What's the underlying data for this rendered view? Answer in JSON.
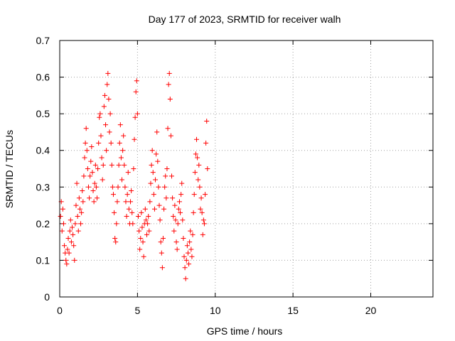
{
  "chart_data": {
    "type": "scatter",
    "title": "Day 177 of 2023, SRMTID for receiver walh",
    "xlabel": "GPS time / hours",
    "ylabel": "SRMTID / TECUs",
    "xlim": [
      0,
      24
    ],
    "ylim": [
      0,
      0.7
    ],
    "xticks": [
      0,
      5,
      10,
      15,
      20
    ],
    "yticks": [
      0,
      0.1,
      0.2,
      0.3,
      0.4,
      0.5,
      0.6,
      0.7
    ],
    "xtick_labels": [
      "0",
      "5",
      "10",
      "15",
      "20"
    ],
    "ytick_labels": [
      "0",
      "0.1",
      "0.2",
      "0.3",
      "0.4",
      "0.5",
      "0.6",
      "0.7"
    ],
    "grid": true,
    "marker": "+",
    "color": "#ff0000",
    "series": [
      {
        "name": "walh",
        "points": [
          [
            0.05,
            0.22
          ],
          [
            0.1,
            0.26
          ],
          [
            0.15,
            0.18
          ],
          [
            0.2,
            0.24
          ],
          [
            0.25,
            0.2
          ],
          [
            0.3,
            0.14
          ],
          [
            0.35,
            0.12
          ],
          [
            0.4,
            0.1
          ],
          [
            0.45,
            0.09
          ],
          [
            0.5,
            0.13
          ],
          [
            0.55,
            0.16
          ],
          [
            0.6,
            0.12
          ],
          [
            0.65,
            0.18
          ],
          [
            0.7,
            0.21
          ],
          [
            0.75,
            0.15
          ],
          [
            0.8,
            0.19
          ],
          [
            0.85,
            0.17
          ],
          [
            0.9,
            0.14
          ],
          [
            0.95,
            0.1
          ],
          [
            1.0,
            0.2
          ],
          [
            1.05,
            0.25
          ],
          [
            1.1,
            0.31
          ],
          [
            1.15,
            0.22
          ],
          [
            1.2,
            0.18
          ],
          [
            1.25,
            0.27
          ],
          [
            1.3,
            0.24
          ],
          [
            1.35,
            0.2
          ],
          [
            1.4,
            0.23
          ],
          [
            1.45,
            0.29
          ],
          [
            1.5,
            0.26
          ],
          [
            1.55,
            0.33
          ],
          [
            1.6,
            0.38
          ],
          [
            1.65,
            0.42
          ],
          [
            1.7,
            0.46
          ],
          [
            1.75,
            0.4
          ],
          [
            1.8,
            0.35
          ],
          [
            1.85,
            0.3
          ],
          [
            1.9,
            0.27
          ],
          [
            1.95,
            0.33
          ],
          [
            2.0,
            0.37
          ],
          [
            2.05,
            0.41
          ],
          [
            2.1,
            0.34
          ],
          [
            2.15,
            0.29
          ],
          [
            2.2,
            0.26
          ],
          [
            2.25,
            0.31
          ],
          [
            2.3,
            0.36
          ],
          [
            2.35,
            0.3
          ],
          [
            2.4,
            0.27
          ],
          [
            2.45,
            0.35
          ],
          [
            2.5,
            0.42
          ],
          [
            2.55,
            0.49
          ],
          [
            2.6,
            0.5
          ],
          [
            2.65,
            0.44
          ],
          [
            2.7,
            0.38
          ],
          [
            2.75,
            0.32
          ],
          [
            2.8,
            0.36
          ],
          [
            2.85,
            0.52
          ],
          [
            2.9,
            0.55
          ],
          [
            2.95,
            0.47
          ],
          [
            3.0,
            0.4
          ],
          [
            3.05,
            0.58
          ],
          [
            3.1,
            0.61
          ],
          [
            3.15,
            0.54
          ],
          [
            3.2,
            0.45
          ],
          [
            3.25,
            0.5
          ],
          [
            3.3,
            0.42
          ],
          [
            3.35,
            0.36
          ],
          [
            3.4,
            0.3
          ],
          [
            3.45,
            0.28
          ],
          [
            3.5,
            0.23
          ],
          [
            3.55,
            0.16
          ],
          [
            3.6,
            0.15
          ],
          [
            3.65,
            0.2
          ],
          [
            3.7,
            0.26
          ],
          [
            3.75,
            0.3
          ],
          [
            3.8,
            0.36
          ],
          [
            3.85,
            0.42
          ],
          [
            3.9,
            0.47
          ],
          [
            3.95,
            0.38
          ],
          [
            4.0,
            0.32
          ],
          [
            4.05,
            0.4
          ],
          [
            4.1,
            0.44
          ],
          [
            4.15,
            0.36
          ],
          [
            4.2,
            0.3
          ],
          [
            4.25,
            0.26
          ],
          [
            4.3,
            0.22
          ],
          [
            4.35,
            0.28
          ],
          [
            4.4,
            0.34
          ],
          [
            4.45,
            0.24
          ],
          [
            4.5,
            0.2
          ],
          [
            4.55,
            0.26
          ],
          [
            4.6,
            0.29
          ],
          [
            4.65,
            0.23
          ],
          [
            4.7,
            0.2
          ],
          [
            4.75,
            0.35
          ],
          [
            4.8,
            0.43
          ],
          [
            4.85,
            0.49
          ],
          [
            4.9,
            0.56
          ],
          [
            4.95,
            0.59
          ],
          [
            5.0,
            0.5
          ],
          [
            5.05,
            0.22
          ],
          [
            5.1,
            0.18
          ],
          [
            5.15,
            0.13
          ],
          [
            5.2,
            0.16
          ],
          [
            5.25,
            0.23
          ],
          [
            5.3,
            0.19
          ],
          [
            5.35,
            0.15
          ],
          [
            5.4,
            0.11
          ],
          [
            5.45,
            0.2
          ],
          [
            5.5,
            0.24
          ],
          [
            5.55,
            0.21
          ],
          [
            5.6,
            0.17
          ],
          [
            5.65,
            0.2
          ],
          [
            5.7,
            0.22
          ],
          [
            5.75,
            0.18
          ],
          [
            5.8,
            0.26
          ],
          [
            5.85,
            0.31
          ],
          [
            5.9,
            0.36
          ],
          [
            5.95,
            0.4
          ],
          [
            6.0,
            0.34
          ],
          [
            6.05,
            0.28
          ],
          [
            6.1,
            0.24
          ],
          [
            6.15,
            0.32
          ],
          [
            6.2,
            0.39
          ],
          [
            6.25,
            0.45
          ],
          [
            6.3,
            0.37
          ],
          [
            6.35,
            0.3
          ],
          [
            6.4,
            0.25
          ],
          [
            6.45,
            0.21
          ],
          [
            6.5,
            0.15
          ],
          [
            6.55,
            0.12
          ],
          [
            6.6,
            0.08
          ],
          [
            6.65,
            0.16
          ],
          [
            6.7,
            0.24
          ],
          [
            6.75,
            0.3
          ],
          [
            6.8,
            0.33
          ],
          [
            6.85,
            0.27
          ],
          [
            6.9,
            0.35
          ],
          [
            6.95,
            0.46
          ],
          [
            7.0,
            0.58
          ],
          [
            7.05,
            0.61
          ],
          [
            7.1,
            0.54
          ],
          [
            7.15,
            0.44
          ],
          [
            7.2,
            0.33
          ],
          [
            7.25,
            0.27
          ],
          [
            7.3,
            0.22
          ],
          [
            7.35,
            0.18
          ],
          [
            7.4,
            0.25
          ],
          [
            7.45,
            0.21
          ],
          [
            7.5,
            0.15
          ],
          [
            7.55,
            0.13
          ],
          [
            7.6,
            0.2
          ],
          [
            7.65,
            0.24
          ],
          [
            7.7,
            0.26
          ],
          [
            7.75,
            0.23
          ],
          [
            7.8,
            0.28
          ],
          [
            7.85,
            0.31
          ],
          [
            7.9,
            0.21
          ],
          [
            7.95,
            0.16
          ],
          [
            8.0,
            0.11
          ],
          [
            8.05,
            0.08
          ],
          [
            8.1,
            0.05
          ],
          [
            8.15,
            0.1
          ],
          [
            8.2,
            0.14
          ],
          [
            8.25,
            0.12
          ],
          [
            8.3,
            0.09
          ],
          [
            8.35,
            0.15
          ],
          [
            8.4,
            0.18
          ],
          [
            8.45,
            0.13
          ],
          [
            8.5,
            0.11
          ],
          [
            8.55,
            0.17
          ],
          [
            8.6,
            0.23
          ],
          [
            8.65,
            0.28
          ],
          [
            8.7,
            0.34
          ],
          [
            8.75,
            0.39
          ],
          [
            8.8,
            0.43
          ],
          [
            8.85,
            0.38
          ],
          [
            8.9,
            0.32
          ],
          [
            8.95,
            0.36
          ],
          [
            9.0,
            0.3
          ],
          [
            9.05,
            0.24
          ],
          [
            9.1,
            0.27
          ],
          [
            9.15,
            0.23
          ],
          [
            9.2,
            0.17
          ],
          [
            9.25,
            0.21
          ],
          [
            9.3,
            0.2
          ],
          [
            9.35,
            0.28
          ],
          [
            9.4,
            0.42
          ],
          [
            9.45,
            0.48
          ],
          [
            9.5,
            0.35
          ]
        ]
      }
    ]
  }
}
